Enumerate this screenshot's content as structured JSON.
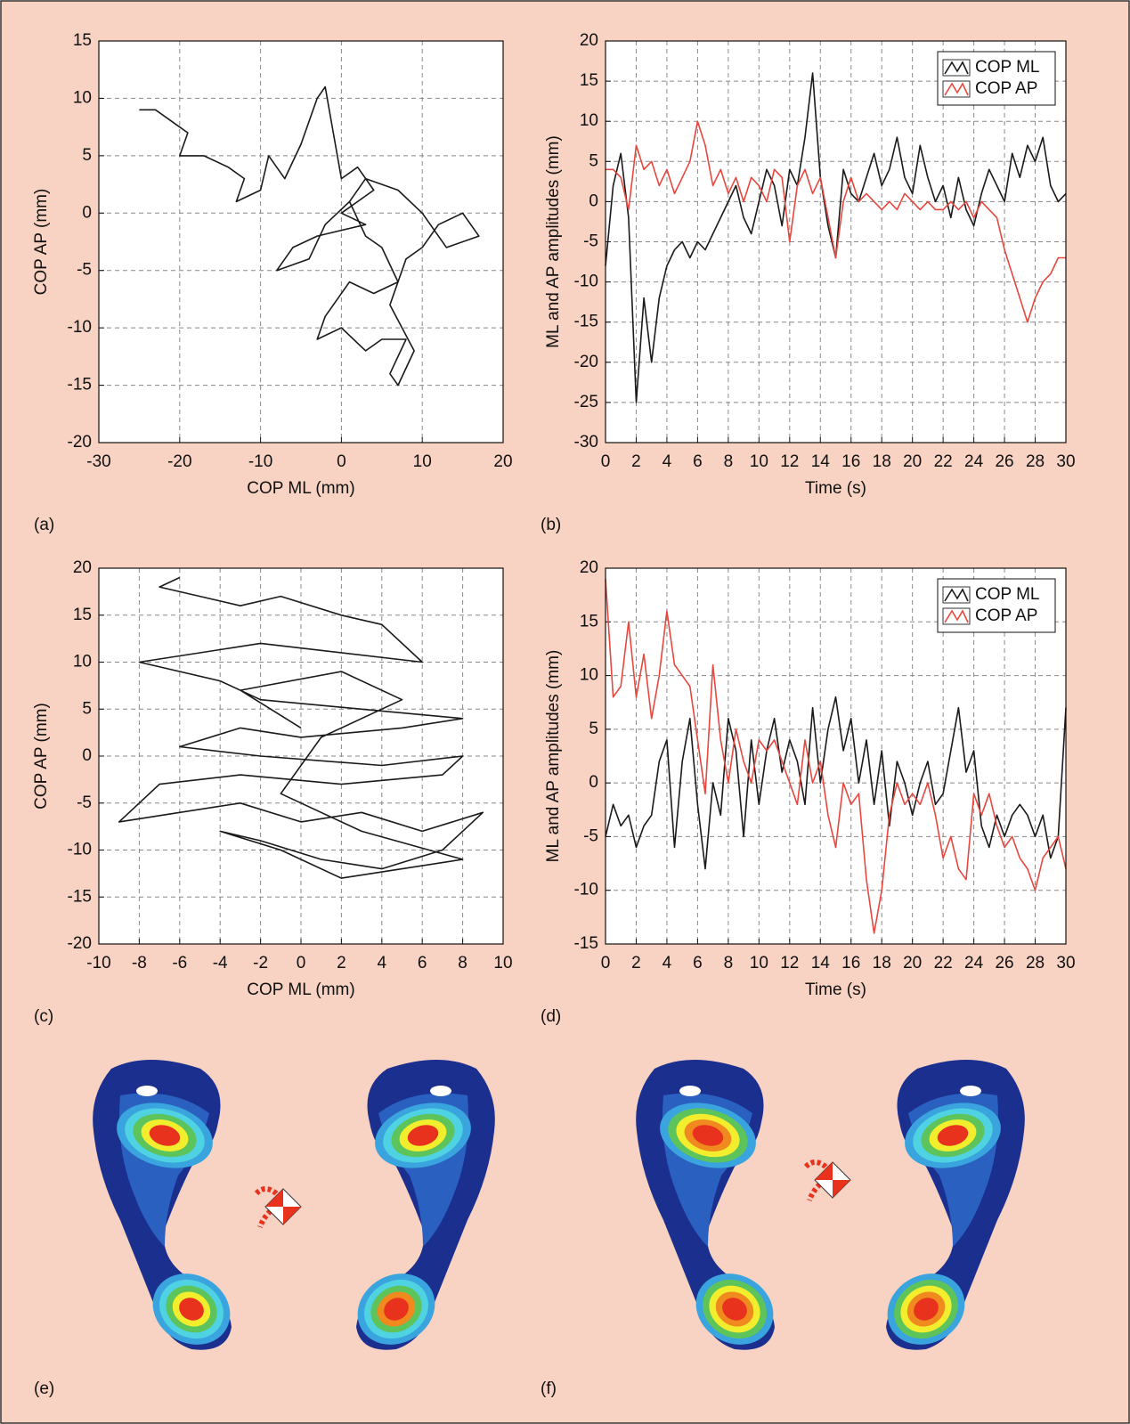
{
  "chart_data": [
    {
      "type": "line",
      "label": "(a)",
      "xlabel": "COP ML (mm)",
      "ylabel": "COP AP (mm)",
      "xlim": [
        -30,
        20
      ],
      "xticks": [
        -30,
        -20,
        -10,
        0,
        10,
        20
      ],
      "ylim": [
        -20,
        15
      ],
      "yticks": [
        -20,
        -15,
        -10,
        -5,
        0,
        5,
        10,
        15
      ],
      "grid": true,
      "x": [
        -25,
        -23,
        -21,
        -19,
        -20,
        -17,
        -14,
        -12,
        -13,
        -10,
        -9,
        -7,
        -5,
        -3,
        -2,
        -1,
        0,
        2,
        4,
        0,
        3,
        -3,
        -6,
        -8,
        -4,
        -2,
        1,
        3,
        5,
        7,
        4,
        1,
        -2,
        -3,
        0,
        3,
        5,
        8,
        6,
        7,
        9,
        6,
        8,
        10,
        12,
        15,
        17,
        13,
        10,
        7,
        3,
        1
      ],
      "series": [
        {
          "color": "#1a1a1a",
          "values": [
            9,
            9,
            8,
            7,
            5,
            5,
            4,
            3,
            1,
            2,
            5,
            3,
            6,
            10,
            11,
            7,
            3,
            4,
            2,
            0,
            -1,
            -2,
            -3,
            -5,
            -4,
            -1,
            1,
            -2,
            -3,
            -6,
            -7,
            -6,
            -9,
            -11,
            -10,
            -12,
            -11,
            -11,
            -14,
            -15,
            -12,
            -8,
            -4,
            -3,
            -1,
            0,
            -2,
            -3,
            0,
            2,
            3,
            1
          ]
        }
      ]
    },
    {
      "type": "line",
      "label": "(b)",
      "xlabel": "Time (s)",
      "ylabel": "ML and AP amplitudes (mm)",
      "xlim": [
        0,
        30
      ],
      "xticks": [
        0,
        2,
        4,
        6,
        8,
        10,
        12,
        14,
        16,
        18,
        20,
        22,
        24,
        26,
        28,
        30
      ],
      "ylim": [
        -30,
        20
      ],
      "yticks": [
        -30,
        -25,
        -20,
        -15,
        -10,
        -5,
        0,
        5,
        10,
        15,
        20
      ],
      "grid": true,
      "legend": "upper right",
      "x": [
        0,
        0.5,
        1,
        1.5,
        2,
        2.5,
        3,
        3.5,
        4,
        4.5,
        5,
        5.5,
        6,
        6.5,
        7,
        7.5,
        8,
        8.5,
        9,
        9.5,
        10,
        10.5,
        11,
        11.5,
        12,
        12.5,
        13,
        13.5,
        14,
        14.5,
        15,
        15.5,
        16,
        16.5,
        17,
        17.5,
        18,
        18.5,
        19,
        19.5,
        20,
        20.5,
        21,
        21.5,
        22,
        22.5,
        23,
        23.5,
        24,
        24.5,
        25,
        25.5,
        26,
        26.5,
        27,
        27.5,
        28,
        28.5,
        29,
        29.5,
        30
      ],
      "series": [
        {
          "name": "COP ML",
          "color": "#1a1a1a",
          "values": [
            -8,
            2,
            6,
            -2,
            -25,
            -12,
            -20,
            -12,
            -8,
            -6,
            -5,
            -7,
            -5,
            -6,
            -4,
            -2,
            0,
            2,
            -2,
            -4,
            0,
            4,
            2,
            -3,
            4,
            2,
            8,
            16,
            3,
            -3,
            -7,
            4,
            1,
            0,
            3,
            6,
            2,
            4,
            8,
            3,
            1,
            7,
            3,
            0,
            2,
            -2,
            3,
            -1,
            -3,
            1,
            4,
            2,
            0,
            6,
            3,
            7,
            5,
            8,
            2,
            0,
            1
          ]
        },
        {
          "name": "COP AP",
          "color": "#e8473e",
          "values": [
            4,
            4,
            3,
            -1,
            7,
            4,
            5,
            2,
            4,
            1,
            3,
            5,
            10,
            7,
            2,
            4,
            1,
            3,
            0,
            3,
            2,
            0,
            4,
            3,
            -5,
            2,
            4,
            1,
            3,
            -2,
            -7,
            0,
            3,
            0,
            1,
            0,
            -1,
            0,
            -1,
            1,
            0,
            -1,
            0,
            -1,
            -1,
            0,
            -1,
            0,
            -2,
            0,
            -1,
            -2,
            -6,
            -9,
            -12,
            -15,
            -12,
            -10,
            -9,
            -7,
            -7
          ]
        }
      ]
    },
    {
      "type": "line",
      "label": "(c)",
      "xlabel": "COP ML (mm)",
      "ylabel": "COP AP (mm)",
      "xlim": [
        -10,
        10
      ],
      "xticks": [
        -10,
        -8,
        -6,
        -4,
        -2,
        0,
        2,
        4,
        6,
        8,
        10
      ],
      "ylim": [
        -20,
        20
      ],
      "yticks": [
        -20,
        -15,
        -10,
        -5,
        0,
        5,
        10,
        15,
        20
      ],
      "grid": true,
      "x": [
        -6,
        -7,
        -5,
        -3,
        -1,
        2,
        4,
        6,
        -2,
        -5,
        -8,
        -4,
        -2,
        3,
        8,
        5,
        0,
        -3,
        -6,
        -2,
        4,
        8,
        7,
        2,
        -3,
        -7,
        -9,
        -6,
        -3,
        0,
        3,
        6,
        9,
        7,
        4,
        1,
        -2,
        -4,
        -1,
        2,
        5,
        8,
        3,
        -1,
        1,
        5,
        2,
        -3,
        0
      ],
      "series": [
        {
          "color": "#1a1a1a",
          "values": [
            19,
            18,
            17,
            16,
            17,
            15,
            14,
            10,
            12,
            11,
            10,
            8,
            6,
            5,
            4,
            3,
            2,
            3,
            1,
            0,
            -1,
            0,
            -2,
            -3,
            -2,
            -3,
            -7,
            -6,
            -5,
            -7,
            -6,
            -8,
            -6,
            -10,
            -12,
            -11,
            -9,
            -8,
            -10,
            -13,
            -12,
            -11,
            -8,
            -4,
            2,
            6,
            9,
            7,
            3
          ]
        }
      ]
    },
    {
      "type": "line",
      "label": "(d)",
      "xlabel": "Time (s)",
      "ylabel": "ML and AP amplitudes (mm)",
      "xlim": [
        0,
        30
      ],
      "xticks": [
        0,
        2,
        4,
        6,
        8,
        10,
        12,
        14,
        16,
        18,
        20,
        22,
        24,
        26,
        28,
        30
      ],
      "ylim": [
        -15,
        20
      ],
      "yticks": [
        -15,
        -10,
        -5,
        0,
        5,
        10,
        15,
        20
      ],
      "grid": true,
      "legend": "upper right",
      "x": [
        0,
        0.5,
        1,
        1.5,
        2,
        2.5,
        3,
        3.5,
        4,
        4.5,
        5,
        5.5,
        6,
        6.5,
        7,
        7.5,
        8,
        8.5,
        9,
        9.5,
        10,
        10.5,
        11,
        11.5,
        12,
        12.5,
        13,
        13.5,
        14,
        14.5,
        15,
        15.5,
        16,
        16.5,
        17,
        17.5,
        18,
        18.5,
        19,
        19.5,
        20,
        20.5,
        21,
        21.5,
        22,
        22.5,
        23,
        23.5,
        24,
        24.5,
        25,
        25.5,
        26,
        26.5,
        27,
        27.5,
        28,
        28.5,
        29,
        29.5,
        30
      ],
      "series": [
        {
          "name": "COP ML",
          "color": "#1a1a1a",
          "values": [
            -5,
            -2,
            -4,
            -3,
            -6,
            -4,
            -3,
            2,
            4,
            -6,
            2,
            6,
            -2,
            -8,
            0,
            -3,
            6,
            3,
            -5,
            4,
            -2,
            3,
            6,
            1,
            4,
            2,
            -2,
            7,
            0,
            5,
            8,
            3,
            6,
            0,
            4,
            -2,
            3,
            -4,
            2,
            0,
            -3,
            0,
            2,
            -2,
            -1,
            3,
            7,
            1,
            3,
            -4,
            -6,
            -3,
            -5,
            -3,
            -2,
            -3,
            -5,
            -3,
            -7,
            -5,
            7
          ]
        },
        {
          "name": "COP AP",
          "color": "#e8473e",
          "values": [
            19,
            8,
            9,
            15,
            8,
            12,
            6,
            10,
            16,
            11,
            10,
            9,
            4,
            -1,
            11,
            4,
            0,
            5,
            2,
            0,
            4,
            3,
            4,
            2,
            0,
            -2,
            4,
            0,
            2,
            -3,
            -6,
            0,
            -2,
            -1,
            -9,
            -14,
            -10,
            -3,
            0,
            -2,
            -1,
            -2,
            0,
            -3,
            -7,
            -5,
            -8,
            -9,
            -1,
            -3,
            -1,
            -4,
            -6,
            -5,
            -7,
            -8,
            -10,
            -7,
            -6,
            -5,
            -8
          ]
        }
      ]
    }
  ],
  "panel_labels": [
    "(e)",
    "(f)"
  ]
}
